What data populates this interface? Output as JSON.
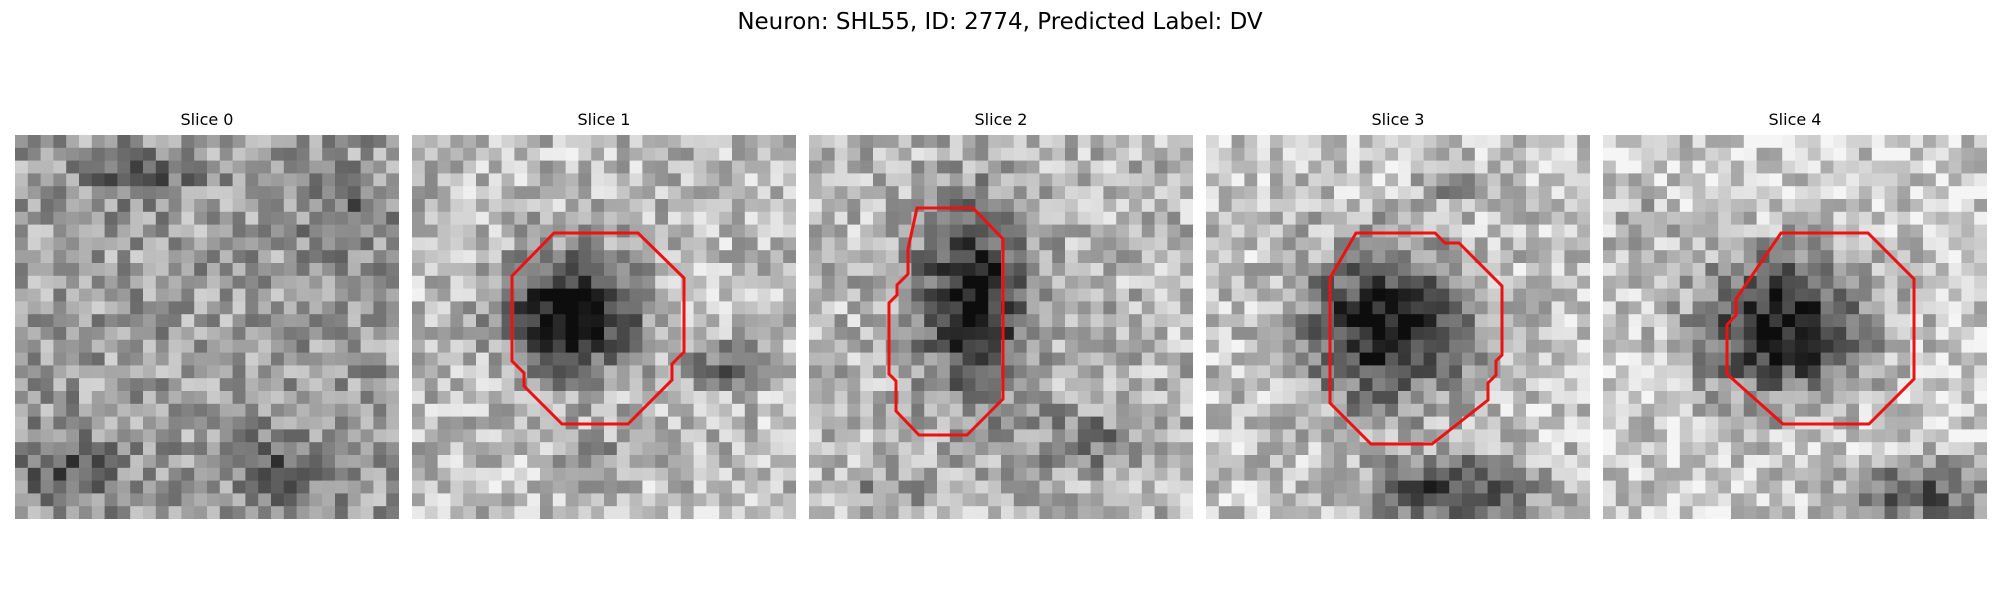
{
  "figure": {
    "title": "Neuron: SHL55, ID: 2774, Predicted Label: DV"
  },
  "colors": {
    "contour": "#ee1111",
    "background": "#ffffff"
  },
  "panels": [
    {
      "title": "Slice 0",
      "has_contour": false
    },
    {
      "title": "Slice 1",
      "has_contour": true
    },
    {
      "title": "Slice 2",
      "has_contour": true
    },
    {
      "title": "Slice 3",
      "has_contour": true
    },
    {
      "title": "Slice 4",
      "has_contour": true
    }
  ]
}
